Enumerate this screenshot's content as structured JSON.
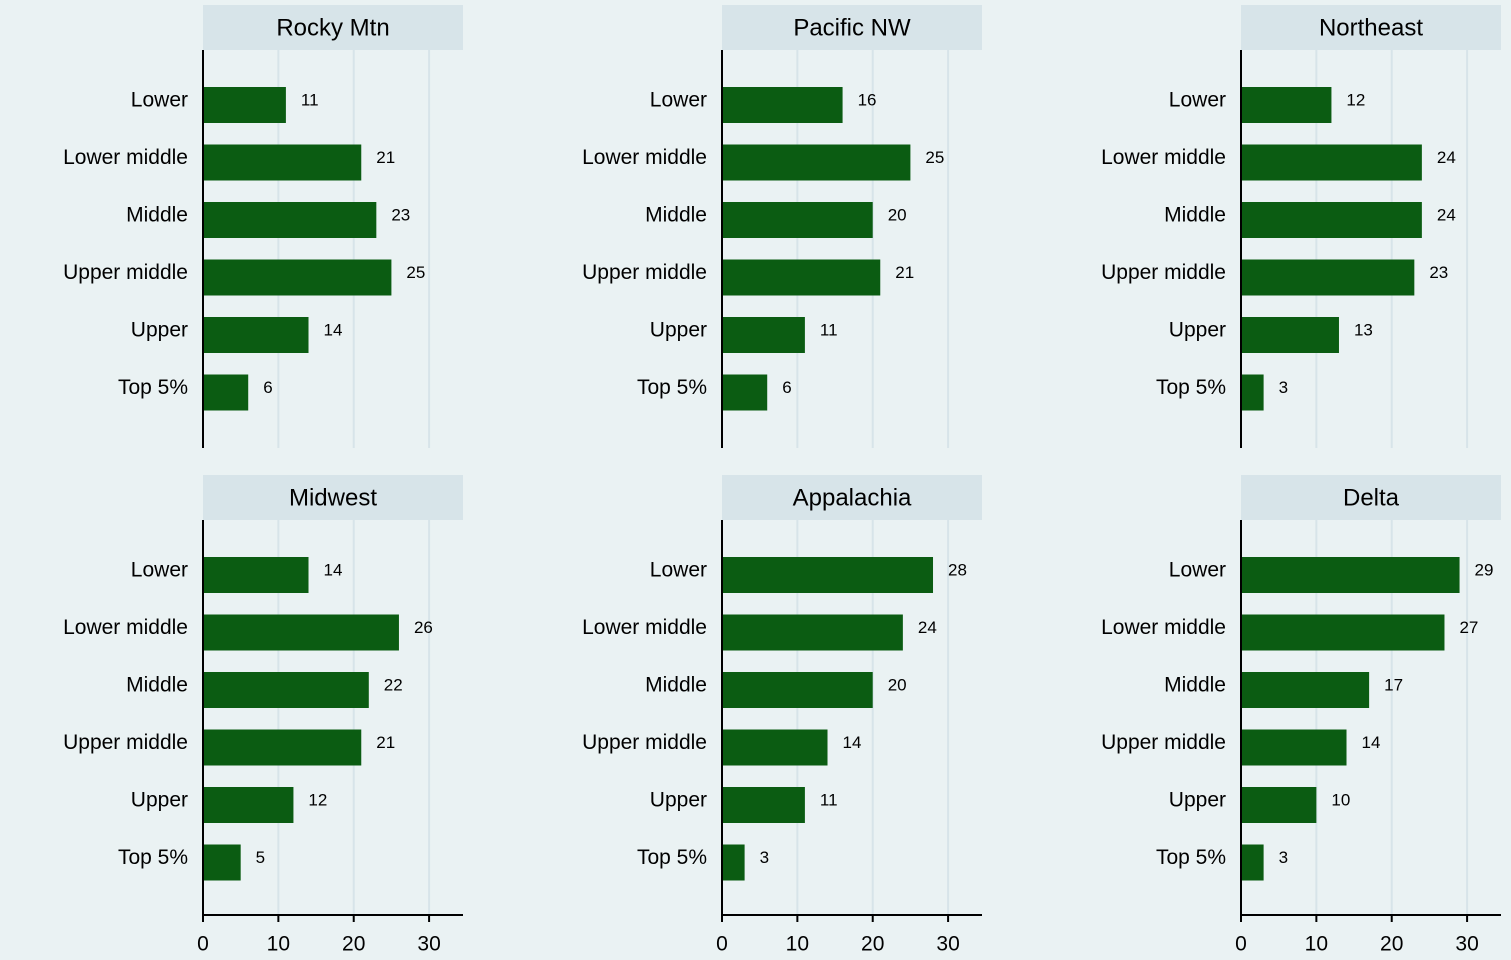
{
  "chart_data": [
    {
      "type": "bar",
      "title": "Rocky Mtn",
      "categories": [
        "Lower",
        "Lower middle",
        "Middle",
        "Upper middle",
        "Upper",
        "Top 5%"
      ],
      "values": [
        11,
        21,
        23,
        25,
        14,
        6
      ],
      "color": "#0b5c12",
      "xlim": [
        0,
        34.5
      ],
      "xticks": [
        0,
        10,
        20,
        30
      ],
      "grid": true
    },
    {
      "type": "bar",
      "title": "Pacific NW",
      "categories": [
        "Lower",
        "Lower middle",
        "Middle",
        "Upper middle",
        "Upper",
        "Top 5%"
      ],
      "values": [
        16,
        25,
        20,
        21,
        11,
        6
      ],
      "color": "#0b5c12",
      "xlim": [
        0,
        34.5
      ],
      "xticks": [
        0,
        10,
        20,
        30
      ],
      "grid": true
    },
    {
      "type": "bar",
      "title": "Northeast",
      "categories": [
        "Lower",
        "Lower middle",
        "Middle",
        "Upper middle",
        "Upper",
        "Top 5%"
      ],
      "values": [
        12,
        24,
        24,
        23,
        13,
        3
      ],
      "color": "#0b5c12",
      "xlim": [
        0,
        34.5
      ],
      "xticks": [
        0,
        10,
        20,
        30
      ],
      "grid": true
    },
    {
      "type": "bar",
      "title": "Midwest",
      "categories": [
        "Lower",
        "Lower middle",
        "Middle",
        "Upper middle",
        "Upper",
        "Top 5%"
      ],
      "values": [
        14,
        26,
        22,
        21,
        12,
        5
      ],
      "color": "#0b5c12",
      "xlim": [
        0,
        34.5
      ],
      "xticks": [
        0,
        10,
        20,
        30
      ],
      "grid": true
    },
    {
      "type": "bar",
      "title": "Appalachia",
      "categories": [
        "Lower",
        "Lower middle",
        "Middle",
        "Upper middle",
        "Upper",
        "Top 5%"
      ],
      "values": [
        28,
        24,
        20,
        14,
        11,
        3
      ],
      "color": "#0b5c12",
      "xlim": [
        0,
        34.5
      ],
      "xticks": [
        0,
        10,
        20,
        30
      ],
      "grid": true
    },
    {
      "type": "bar",
      "title": "Delta",
      "categories": [
        "Lower",
        "Lower middle",
        "Middle",
        "Upper middle",
        "Upper",
        "Top 5%"
      ],
      "values": [
        29,
        27,
        17,
        14,
        10,
        3
      ],
      "color": "#0b5c12",
      "xlim": [
        0,
        34.5
      ],
      "xticks": [
        0,
        10,
        20,
        30
      ],
      "grid": true
    }
  ]
}
